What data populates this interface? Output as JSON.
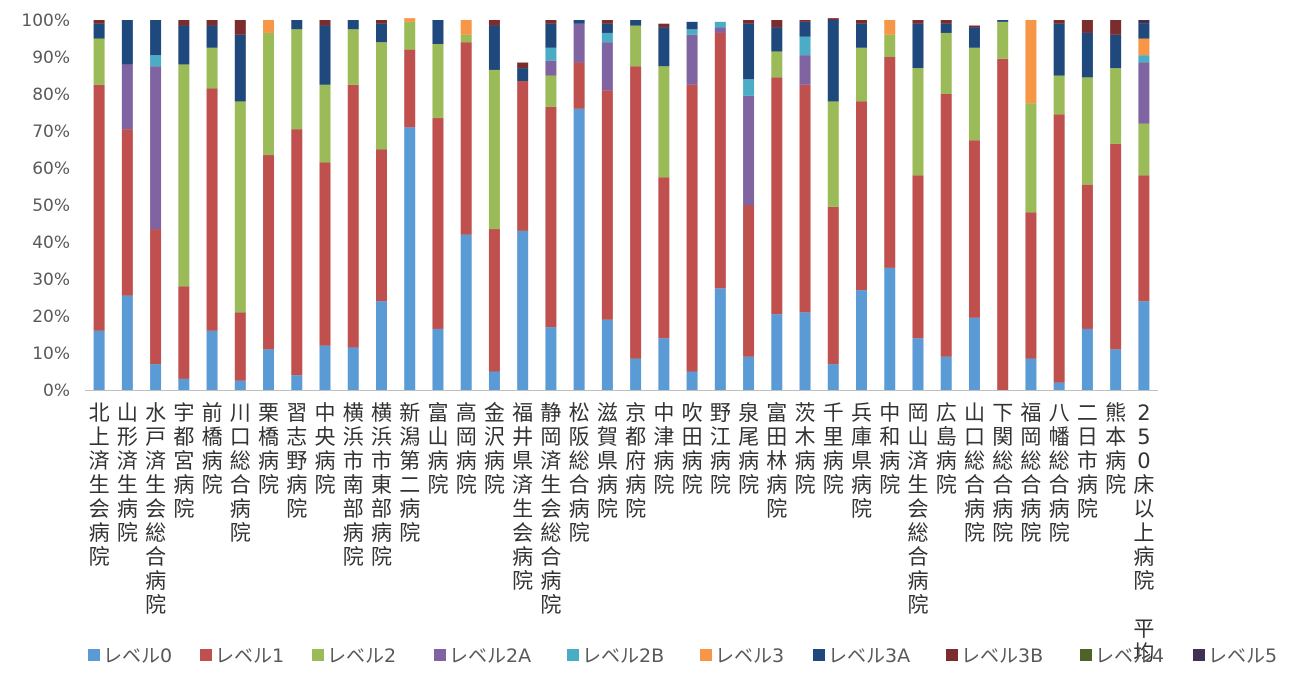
{
  "chart_data": {
    "type": "bar",
    "stacked": true,
    "percent": true,
    "title": "",
    "xlabel": "",
    "ylabel": "",
    "ylim": [
      0,
      100
    ],
    "yticks": [
      "0%",
      "10%",
      "20%",
      "30%",
      "40%",
      "50%",
      "60%",
      "70%",
      "80%",
      "90%",
      "100%"
    ],
    "grid": false,
    "legend": "bottom",
    "categories": [
      "北上済生会病院",
      "山形済生病院",
      "水戸済生会総合病院",
      "宇都宮病院",
      "前橋病院",
      "川口総合病院",
      "栗橋病院",
      "習志野病院",
      "中央病院",
      "横浜市南部病院",
      "横浜市東部病院",
      "新潟第二病院",
      "富山病院",
      "高岡病院",
      "金沢病院",
      "福井県済生会病院",
      "静岡済生会総合病院",
      "松阪総合病院",
      "滋賀県病院",
      "京都府病院",
      "中津病院",
      "吹田病院",
      "野江病院",
      "泉尾病院",
      "富田林病院",
      "茨木病院",
      "千里病院",
      "兵庫県病院",
      "中和病院",
      "岡山済生会総合病院",
      "広島病院",
      "山口総合病院",
      "下関総合病院",
      "福岡総合病院",
      "八幡総合病院",
      "二日市病院",
      "熊本病院",
      "250床以上病院　平均"
    ],
    "series": [
      {
        "name": "レベル0",
        "color": "#5B9BD5",
        "values": [
          16,
          25.5,
          7,
          3,
          16,
          2.5,
          11,
          4,
          12,
          11.5,
          24,
          71,
          16.5,
          42,
          5,
          43,
          17,
          76,
          19,
          8.5,
          14,
          5,
          27.5,
          9,
          20.5,
          21,
          7,
          27,
          33,
          14,
          9,
          19.5,
          0,
          8.5,
          2,
          16.5,
          11,
          24
        ]
      },
      {
        "name": "レベル1",
        "color": "#C0504D",
        "values": [
          66.5,
          45,
          36.5,
          25,
          65.5,
          18.5,
          52.5,
          66.5,
          49.5,
          71,
          41,
          21,
          57,
          52,
          38.5,
          40.5,
          59.5,
          12.5,
          62,
          79,
          43.5,
          77.5,
          69,
          41,
          64,
          61.5,
          42.5,
          51,
          57,
          44,
          71,
          48,
          89.5,
          39.5,
          72.5,
          39,
          55.5,
          34
        ]
      },
      {
        "name": "レベル2",
        "color": "#9BBB59",
        "values": [
          12.5,
          0,
          0,
          60,
          11,
          57,
          33,
          27,
          21,
          15,
          29,
          7.5,
          20,
          2,
          43,
          0,
          8.5,
          0,
          0,
          11,
          30,
          0,
          0,
          0,
          7,
          0,
          28.5,
          14.5,
          6,
          29,
          16.5,
          25,
          10,
          29.5,
          10.5,
          29,
          20.5,
          14
        ]
      },
      {
        "name": "レベル2A",
        "color": "#8064A2",
        "values": [
          0,
          17.5,
          44,
          0,
          0,
          0,
          0,
          0,
          0,
          0,
          0,
          0,
          0,
          0,
          0,
          0,
          4,
          10.5,
          13,
          0,
          0,
          13.5,
          1.5,
          29.5,
          0,
          8,
          0,
          0,
          0,
          0,
          0,
          0,
          0,
          0,
          0,
          0,
          0,
          16.5
        ]
      },
      {
        "name": "レベル2B",
        "color": "#4BACC6",
        "values": [
          0,
          0,
          3,
          0,
          0,
          0,
          0,
          0,
          0,
          0,
          0,
          0,
          0,
          0,
          0,
          0,
          3.5,
          0,
          2.5,
          0,
          0,
          1.5,
          1.5,
          4.5,
          0,
          5,
          0,
          0,
          0,
          0,
          0,
          0,
          0,
          0,
          0,
          0,
          0,
          2
        ]
      },
      {
        "name": "レベル3",
        "color": "#F79646",
        "values": [
          0,
          0,
          0,
          0,
          0,
          0,
          3.5,
          0,
          0,
          0,
          0,
          1,
          0,
          4,
          0,
          0,
          0,
          0,
          0,
          0,
          0,
          0,
          0,
          0,
          0,
          0,
          0,
          0,
          4,
          0,
          0,
          0,
          0,
          22.5,
          0,
          0,
          0,
          4.5
        ]
      },
      {
        "name": "レベル3A",
        "color": "#1F497D",
        "values": [
          4,
          12,
          9.5,
          10.5,
          6,
          18,
          0,
          2.5,
          16,
          2.5,
          5,
          0,
          6.5,
          0,
          12,
          3.5,
          6.5,
          1,
          2.5,
          1.5,
          10.5,
          2,
          0,
          15,
          6.5,
          4,
          22,
          6.5,
          0,
          12,
          2.5,
          5.5,
          0.5,
          0,
          14,
          12,
          9,
          4
        ]
      },
      {
        "name": "レベル3B",
        "color": "#7B2C2C",
        "values": [
          1,
          0,
          0,
          1.5,
          1.5,
          4,
          0,
          0,
          1.5,
          0,
          1,
          0,
          0,
          0,
          1.5,
          1.5,
          1,
          0,
          1,
          0,
          1,
          0,
          0,
          1,
          2,
          0.5,
          0.5,
          1,
          0,
          1,
          1,
          0.5,
          0,
          0,
          1,
          3.5,
          4,
          0
        ]
      },
      {
        "name": "レベル4",
        "color": "#4F6228",
        "values": [
          0,
          0,
          0,
          0,
          0,
          0,
          0,
          0,
          0,
          0,
          0,
          0,
          0,
          0,
          0,
          0,
          0,
          0,
          0,
          0,
          0,
          0,
          0,
          0,
          0,
          0,
          0,
          0,
          0,
          0,
          0,
          0,
          0,
          0,
          0,
          0,
          0,
          0
        ]
      },
      {
        "name": "レベル5",
        "color": "#3F3151",
        "values": [
          0,
          0,
          0,
          0,
          0,
          0,
          0,
          0,
          0,
          0,
          0,
          0,
          0,
          0,
          0,
          0,
          0,
          0,
          0,
          0,
          0,
          0,
          0,
          0,
          0,
          0,
          0,
          0,
          0,
          0,
          0,
          0,
          0,
          0,
          0,
          0,
          0,
          1
        ]
      }
    ]
  }
}
